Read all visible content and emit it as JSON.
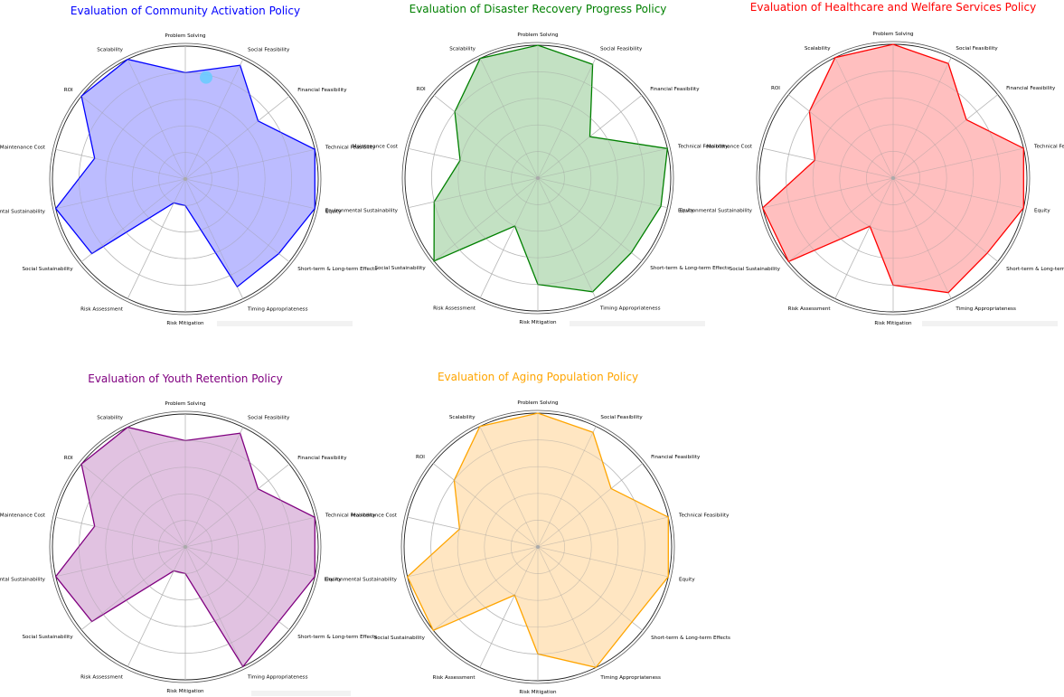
{
  "figure": {
    "axes": [
      "Problem Solving",
      "Social Feasibility",
      "Financial Feasibility",
      "Technical Feasibility",
      "Equity",
      "Short-term & Long-term Effects",
      "Timing Appropriateness",
      "Risk Mitigation",
      "Risk Assessment",
      "Social Sustainability",
      "Environmental Sustainability",
      "Maintenance Cost",
      "ROI",
      "Scalability"
    ]
  },
  "chart_data": [
    {
      "type": "radar",
      "title": "Evaluation of Community Activation Policy",
      "color": "#0000ff",
      "fill": "#b8b8ff",
      "rlim": [
        0,
        10
      ],
      "grid": true,
      "values": [
        8,
        9.5,
        7,
        10,
        10,
        9,
        9,
        2,
        2,
        9,
        10,
        7,
        10,
        10
      ],
      "highlight": {
        "index": 0,
        "color": "#66ccff"
      }
    },
    {
      "type": "radar",
      "title": "Evaluation of Disaster Recovery Progress Policy",
      "color": "#008000",
      "fill": "#c0dfc0",
      "rlim": [
        0,
        10
      ],
      "grid": true,
      "values": [
        10,
        9.5,
        5,
        10,
        9.5,
        9,
        9.5,
        8,
        4,
        10,
        8,
        6,
        8,
        10
      ]
    },
    {
      "type": "radar",
      "title": "Evaluation of Healthcare and Welfare Services Policy",
      "color": "#ff0000",
      "fill": "#ffbcbc",
      "rlim": [
        0,
        10
      ],
      "grid": true,
      "values": [
        10,
        9.5,
        7,
        10,
        10,
        9,
        9.5,
        8,
        4,
        10,
        10,
        6,
        8,
        10
      ]
    },
    {
      "type": "radar",
      "title": "Evaluation of Youth Retention Policy",
      "color": "#800080",
      "fill": "#dfbfdf",
      "rlim": [
        0,
        10
      ],
      "grid": true,
      "values": [
        8,
        9.5,
        7,
        10,
        10,
        9,
        10,
        2,
        2,
        9,
        10,
        7,
        10,
        10
      ]
    },
    {
      "type": "radar",
      "title": "Evaluation of Aging Population Policy",
      "color": "#ffa500",
      "fill": "#ffe5bf",
      "rlim": [
        0,
        10
      ],
      "grid": true,
      "values": [
        10,
        9.5,
        7,
        10,
        10,
        9,
        10,
        8,
        4,
        10,
        10,
        6,
        8,
        10
      ]
    }
  ]
}
